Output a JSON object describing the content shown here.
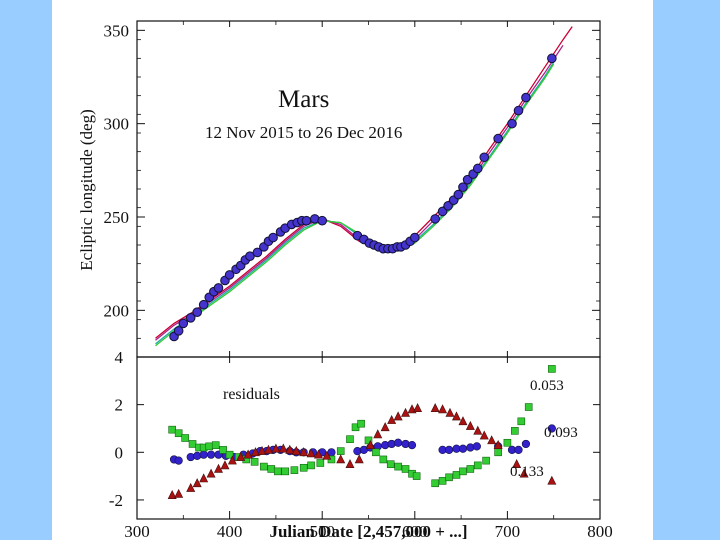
{
  "colors": {
    "side_band": "#99ccff",
    "fit_red": "#cc0033",
    "fit_magenta": "#aa2288",
    "fit_cyan": "#22aaaa",
    "fit_green": "#33cc33",
    "obs_fill": "#4433cc",
    "obs_stroke": "#111133",
    "resid_blue": "#3322cc",
    "resid_green": "#33cc33",
    "resid_red": "#aa1111"
  },
  "chart_data": [
    {
      "type": "scatter",
      "panel": "main",
      "title": "Mars",
      "subtitle": "12 Nov 2015 to 26 Dec 2016",
      "ylabel": "Ecliptic longitude (deg)",
      "xlim": [
        300,
        800
      ],
      "ylim": [
        175,
        355
      ],
      "yticks": [
        200,
        250,
        300,
        350
      ],
      "grid": false,
      "fits": [
        {
          "name": "fit-red",
          "color": "#cc0033",
          "x": [
            320,
            340,
            360,
            380,
            400,
            420,
            440,
            460,
            480,
            500,
            520,
            540,
            560,
            580,
            600,
            620,
            640,
            660,
            680,
            700,
            720,
            740,
            760,
            770
          ],
          "y": [
            185,
            193,
            199,
            206,
            213,
            221,
            229,
            238,
            246,
            249,
            245,
            237,
            233,
            234,
            240,
            250,
            260,
            271,
            286,
            300,
            315,
            330,
            345,
            352
          ]
        },
        {
          "name": "fit-magenta",
          "color": "#aa2288",
          "x": [
            320,
            340,
            360,
            380,
            400,
            420,
            440,
            460,
            480,
            500,
            520,
            540,
            560,
            580,
            600,
            620,
            640,
            660,
            680,
            700,
            720,
            740,
            760
          ],
          "y": [
            184,
            192,
            198,
            205,
            212,
            220,
            228,
            237,
            245,
            249,
            246,
            238,
            233,
            233,
            238,
            248,
            258,
            269,
            284,
            298,
            313,
            327,
            342
          ]
        },
        {
          "name": "fit-cyan",
          "color": "#22aaaa",
          "x": [
            320,
            340,
            360,
            380,
            400,
            420,
            440,
            460,
            480,
            500,
            520,
            540,
            560,
            580,
            600,
            620,
            640,
            660,
            680,
            700,
            720,
            740,
            750
          ],
          "y": [
            182,
            190,
            197,
            204,
            211,
            219,
            227,
            236,
            244,
            248,
            247,
            240,
            234,
            233,
            237,
            246,
            256,
            268,
            282,
            296,
            311,
            325,
            333
          ]
        },
        {
          "name": "fit-green",
          "color": "#33cc33",
          "x": [
            320,
            340,
            360,
            380,
            400,
            420,
            440,
            460,
            480,
            500,
            520,
            540,
            560,
            580,
            600,
            620,
            640,
            660,
            680,
            700,
            720,
            740,
            750
          ],
          "y": [
            181,
            189,
            196,
            203,
            210,
            218,
            226,
            235,
            243,
            248,
            247,
            241,
            235,
            232,
            236,
            245,
            255,
            267,
            281,
            295,
            310,
            324,
            332
          ]
        }
      ],
      "observations": {
        "x": [
          340,
          345,
          350,
          358,
          365,
          372,
          378,
          383,
          388,
          395,
          400,
          407,
          412,
          417,
          422,
          430,
          437,
          442,
          447,
          455,
          460,
          467,
          473,
          478,
          483,
          492,
          500,
          538,
          545,
          551,
          556,
          561,
          566,
          571,
          576,
          581,
          585,
          590,
          595,
          600,
          622,
          630,
          636,
          642,
          647,
          652,
          657,
          663,
          668,
          675,
          690,
          705,
          712,
          720,
          748
        ],
        "y": [
          186,
          189,
          193,
          196,
          199,
          203,
          207,
          210,
          212,
          216,
          219,
          222,
          224,
          227,
          229,
          231,
          234,
          237,
          239,
          242,
          244,
          246,
          247,
          248,
          248,
          249,
          248,
          240,
          238,
          236,
          235,
          234,
          233,
          233,
          233,
          234,
          234,
          235,
          237,
          239,
          249,
          253,
          256,
          259,
          262,
          266,
          270,
          273,
          276,
          282,
          292,
          300,
          307,
          314,
          335
        ]
      }
    },
    {
      "type": "scatter",
      "panel": "residuals",
      "annotation": "residuals",
      "xlabel": "Julian Date [2,457,000 + ...]",
      "xlim": [
        300,
        800
      ],
      "xticks": [
        300,
        400,
        500,
        600,
        700,
        800
      ],
      "ylim": [
        -2.8,
        4
      ],
      "yticks": [
        4,
        2,
        0,
        -2
      ],
      "grid": false,
      "series": [
        {
          "name": "residuals-blue",
          "color": "#3322cc",
          "marker": "circle",
          "end_label": "0.093",
          "x": [
            340,
            345,
            358,
            365,
            372,
            380,
            388,
            396,
            405,
            415,
            425,
            433,
            440,
            447,
            455,
            465,
            472,
            480,
            490,
            500,
            510,
            538,
            545,
            552,
            560,
            568,
            575,
            582,
            590,
            597,
            630,
            637,
            645,
            652,
            660,
            667,
            690,
            705,
            712,
            720,
            748
          ],
          "y": [
            -0.3,
            -0.35,
            -0.2,
            -0.15,
            -0.1,
            -0.1,
            -0.1,
            -0.15,
            -0.2,
            -0.1,
            -0.05,
            0.05,
            0.05,
            0.1,
            0.1,
            0.05,
            0.0,
            0.0,
            0.0,
            0.0,
            0.0,
            0.05,
            0.1,
            0.2,
            0.25,
            0.3,
            0.35,
            0.4,
            0.35,
            0.3,
            0.1,
            0.1,
            0.15,
            0.15,
            0.2,
            0.25,
            0.25,
            0.1,
            0.1,
            0.35,
            1.0
          ]
        },
        {
          "name": "residuals-green",
          "color": "#33cc33",
          "marker": "square",
          "end_label": "0.053",
          "x": [
            338,
            345,
            352,
            360,
            367,
            372,
            378,
            385,
            393,
            400,
            410,
            418,
            427,
            437,
            445,
            452,
            460,
            470,
            480,
            488,
            498,
            510,
            520,
            530,
            536,
            542,
            550,
            558,
            566,
            574,
            582,
            590,
            597,
            602,
            622,
            630,
            637,
            645,
            652,
            660,
            668,
            677,
            690,
            700,
            708,
            715,
            723,
            748
          ],
          "y": [
            0.95,
            0.8,
            0.6,
            0.35,
            0.2,
            0.2,
            0.25,
            0.3,
            0.1,
            -0.1,
            -0.2,
            -0.3,
            -0.4,
            -0.6,
            -0.7,
            -0.8,
            -0.8,
            -0.75,
            -0.65,
            -0.55,
            -0.45,
            -0.3,
            0.05,
            0.55,
            1.05,
            1.2,
            0.5,
            0.0,
            -0.3,
            -0.5,
            -0.6,
            -0.7,
            -0.9,
            -1.0,
            -1.3,
            -1.2,
            -1.05,
            -0.95,
            -0.8,
            -0.7,
            -0.55,
            -0.35,
            0.0,
            0.4,
            0.9,
            1.3,
            1.9,
            3.5
          ]
        },
        {
          "name": "residuals-red",
          "color": "#aa1111",
          "marker": "triangle",
          "end_label": "0.133",
          "x": [
            338,
            345,
            358,
            365,
            372,
            380,
            388,
            395,
            403,
            412,
            420,
            428,
            435,
            442,
            450,
            458,
            465,
            472,
            480,
            488,
            496,
            505,
            520,
            530,
            540,
            552,
            560,
            568,
            575,
            582,
            590,
            597,
            603,
            622,
            630,
            638,
            645,
            652,
            660,
            668,
            675,
            683,
            690,
            710,
            718,
            748
          ],
          "y": [
            -1.8,
            -1.75,
            -1.5,
            -1.3,
            -1.1,
            -0.9,
            -0.7,
            -0.55,
            -0.35,
            -0.2,
            -0.1,
            0.0,
            0.05,
            0.1,
            0.15,
            0.15,
            0.1,
            0.05,
            0.0,
            -0.05,
            -0.1,
            -0.15,
            -0.3,
            -0.5,
            -0.3,
            0.3,
            0.75,
            1.05,
            1.35,
            1.5,
            1.65,
            1.8,
            1.85,
            1.85,
            1.8,
            1.65,
            1.5,
            1.3,
            1.1,
            0.9,
            0.7,
            0.5,
            0.3,
            -0.5,
            -0.9,
            -1.2
          ]
        }
      ]
    }
  ]
}
